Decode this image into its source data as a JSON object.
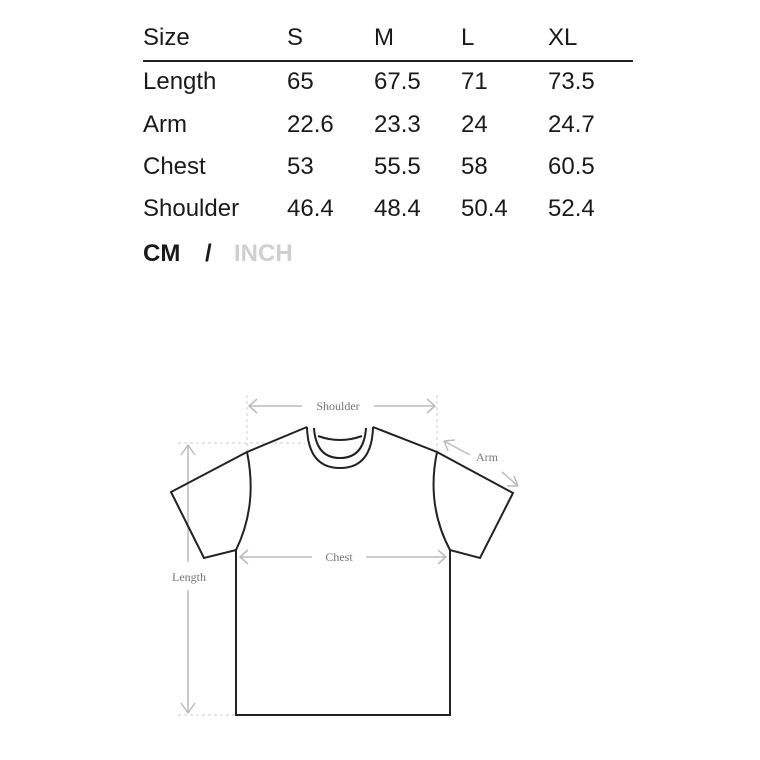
{
  "table": {
    "headers": [
      "Size",
      "S",
      "M",
      "L",
      "XL"
    ],
    "rows": [
      [
        "Length",
        "65",
        "67.5",
        "71",
        "73.5"
      ],
      [
        "Arm",
        "22.6",
        "23.3",
        "24",
        "24.7"
      ],
      [
        "Chest",
        "53",
        "55.5",
        "58",
        "60.5"
      ],
      [
        "Shoulder",
        "46.4",
        "48.4",
        "50.4",
        "52.4"
      ]
    ]
  },
  "units": {
    "active": "CM",
    "separator": "/",
    "inactive": "INCH",
    "active_color": "#1a1a1a",
    "inactive_color": "#cfcfcf"
  },
  "diagram": {
    "shoulder": "Shoulder",
    "arm": "Arm",
    "chest": "Chest",
    "length": "Length"
  }
}
